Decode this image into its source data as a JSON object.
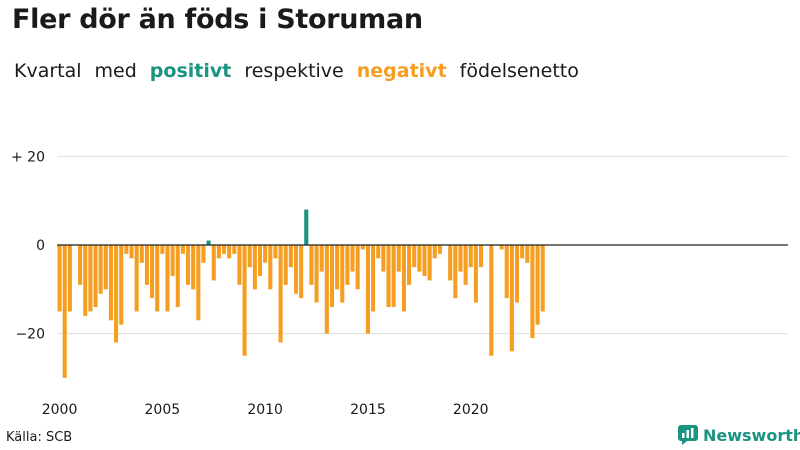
{
  "title": "Fler dör än föds i Storuman",
  "subtitle": {
    "w1": "Kvartal",
    "w2": "med",
    "positive": "positivt",
    "w3": "respektive",
    "negative": "negativt",
    "w4": "födelsenetto"
  },
  "source": "Källa: SCB",
  "brand": "Newsworthy",
  "colors": {
    "positive": "#1a9380",
    "negative": "#f59e22",
    "grid": "#dddddd",
    "zero_line": "#222222",
    "text": "#1a1a1a"
  },
  "chart_data": {
    "type": "bar",
    "x_unit": "quarter",
    "start_year": 2000,
    "start_quarter": 1,
    "values": [
      -15,
      -30,
      -15,
      0,
      -9,
      -16,
      -15,
      -14,
      -11,
      -10,
      -17,
      -22,
      -18,
      -2,
      -3,
      -15,
      -4,
      -9,
      -12,
      -15,
      -2,
      -15,
      -7,
      -14,
      -2,
      -9,
      -10,
      -17,
      -4,
      1,
      -8,
      -3,
      -2,
      -3,
      -2,
      -9,
      -25,
      -5,
      -10,
      -7,
      -4,
      -10,
      -3,
      -22,
      -9,
      -5,
      -11,
      -12,
      8,
      -9,
      -13,
      -6,
      -20,
      -14,
      -10,
      -13,
      -9,
      -6,
      -10,
      -1,
      -20,
      -15,
      -3,
      -6,
      -14,
      -14,
      -6,
      -15,
      -9,
      -5,
      -6,
      -7,
      -8,
      -3,
      -2,
      0,
      -8,
      -12,
      -6,
      -9,
      -5,
      -13,
      -5,
      0,
      -25,
      0,
      -1,
      -12,
      -24,
      -13,
      -3,
      -4,
      -21,
      -18,
      -15
    ],
    "xticks": [
      "2000",
      "2005",
      "2010",
      "2015",
      "2020"
    ],
    "yticks": [
      "+ 20",
      "0",
      "−20"
    ],
    "ytick_values": [
      20,
      0,
      -20
    ],
    "ylim": [
      -33,
      22
    ],
    "grid": "horizontal"
  }
}
